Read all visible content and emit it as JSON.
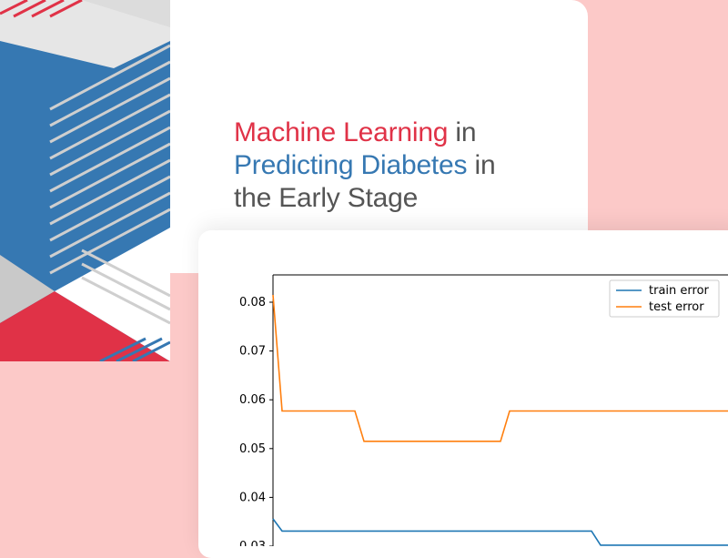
{
  "title": {
    "part1": "Machine Learning",
    "part2": " in",
    "part3": "Predicting Diabetes",
    "part4": " in",
    "part5": "the Early Stage"
  },
  "colors": {
    "background": "#fcc9c8",
    "red": "#e03247",
    "blue": "#3678b2",
    "gray_text": "#555555",
    "train": "#1f77b4",
    "test": "#ff7f0e"
  },
  "chart_data": {
    "type": "line",
    "title": "",
    "xlabel": "",
    "ylabel": "",
    "ylim": [
      0.03,
      0.086
    ],
    "y_ticks": [
      "0.03",
      "0.04",
      "0.05",
      "0.06",
      "0.07",
      "0.08"
    ],
    "xlim": [
      0,
      50
    ],
    "legend": "top-right",
    "x": [
      0,
      1,
      9,
      10,
      25,
      26,
      35,
      36,
      50
    ],
    "series": [
      {
        "name": "train error",
        "color": "#1f77b4",
        "x": [
          0,
          1,
          35,
          36,
          50
        ],
        "values": [
          0.0356,
          0.0331,
          0.0331,
          0.0302,
          0.0302
        ]
      },
      {
        "name": "test error",
        "color": "#ff7f0e",
        "x": [
          0,
          1,
          9,
          10,
          25,
          26,
          50
        ],
        "values": [
          0.0815,
          0.0577,
          0.0577,
          0.0515,
          0.0515,
          0.0577,
          0.0577
        ]
      }
    ]
  }
}
